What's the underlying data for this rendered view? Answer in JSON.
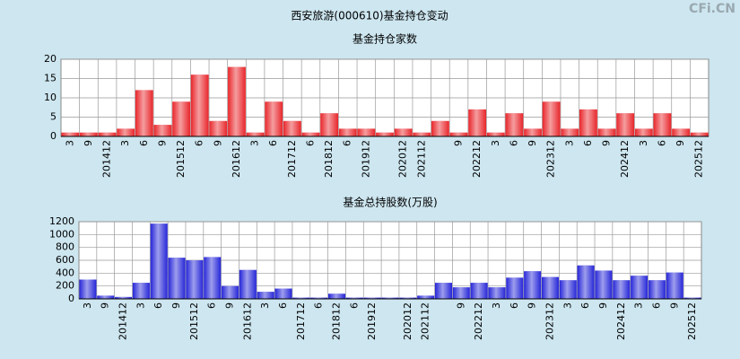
{
  "title": "西安旅游(000610)基金持仓变动",
  "watermark": "CFi.CN",
  "chart_data": [
    {
      "type": "bar",
      "title": "基金持仓家数",
      "categories": [
        "3",
        "9",
        "201412",
        "3",
        "6",
        "9",
        "201512",
        "6",
        "9",
        "201612",
        "3",
        "6",
        "201712",
        "6",
        "201812",
        "6",
        "201912",
        null,
        "202012",
        "202112",
        null,
        "9",
        "202212",
        "3",
        "6",
        "9",
        "202312",
        "3",
        "6",
        "9",
        "202412",
        "3",
        "6",
        "9",
        "202512"
      ],
      "values": [
        1,
        1,
        1,
        2,
        12,
        3,
        9,
        16,
        4,
        18,
        1,
        9,
        4,
        1,
        6,
        2,
        2,
        1,
        2,
        1,
        4,
        1,
        7,
        1,
        6,
        2,
        9,
        2,
        7,
        2,
        6,
        2,
        6,
        2,
        1
      ],
      "color": "#e8262b",
      "ylim": [
        0,
        20
      ],
      "yticks": [
        0,
        5,
        10,
        15,
        20
      ],
      "grid": true
    },
    {
      "type": "bar",
      "title": "基金总持股数(万股)",
      "categories": [
        "3",
        "9",
        "201412",
        "3",
        "6",
        "9",
        "201512",
        "6",
        "9",
        "201612",
        "3",
        "6",
        "201712",
        "6",
        "201812",
        "6",
        "201912",
        null,
        "202012",
        "202112",
        null,
        "9",
        "202212",
        "3",
        "6",
        "9",
        "202312",
        "3",
        "6",
        "9",
        "202412",
        "3",
        "6",
        "9",
        "202512"
      ],
      "values": [
        300,
        50,
        30,
        250,
        1170,
        640,
        600,
        650,
        200,
        450,
        110,
        160,
        20,
        20,
        80,
        20,
        20,
        20,
        20,
        50,
        250,
        180,
        250,
        180,
        330,
        430,
        340,
        290,
        520,
        440,
        290,
        360,
        290,
        410,
        20
      ],
      "color": "#2626d8",
      "ylim": [
        0,
        1200
      ],
      "yticks": [
        0,
        200,
        400,
        600,
        800,
        1000,
        1200
      ],
      "grid": true
    }
  ]
}
